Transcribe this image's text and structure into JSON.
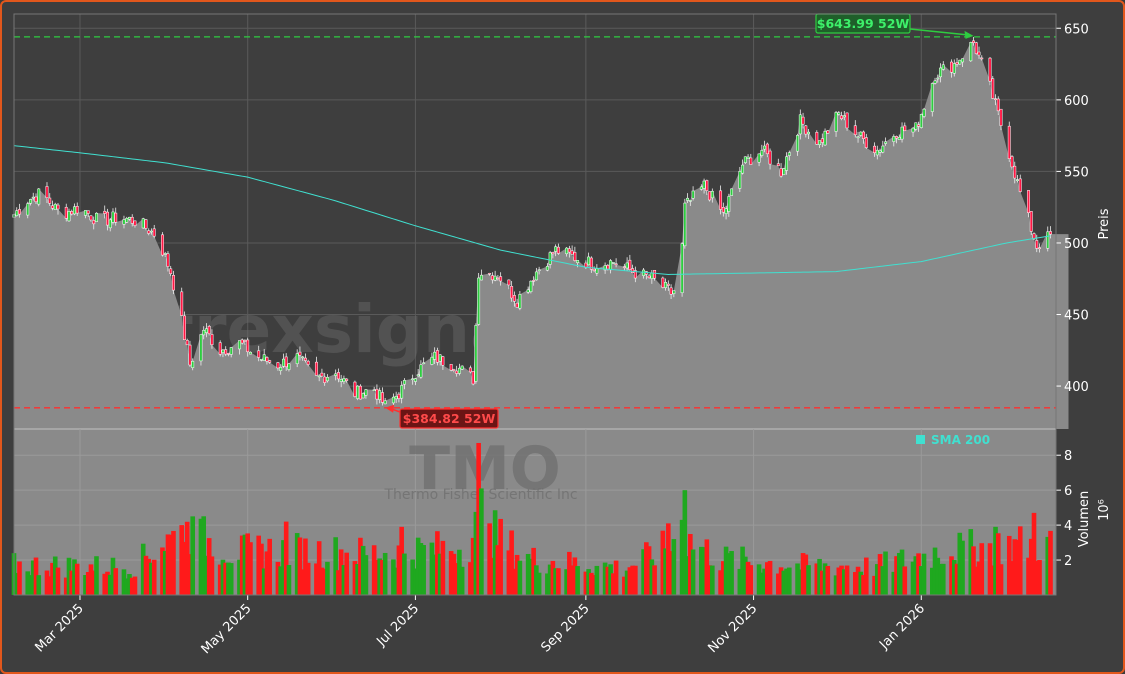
{
  "chart_data": [
    {
      "type": "candlestick",
      "title": "",
      "watermark": "trexsignale.trade",
      "ylabel": "Preis",
      "ylim": [
        370,
        660
      ],
      "yticks": [
        400,
        450,
        500,
        550,
        600,
        650
      ],
      "xlim": [
        "2025-02-05",
        "2026-02-19"
      ],
      "xticks": [
        {
          "date": "2025-03-01",
          "label": "Mar 2025"
        },
        {
          "date": "2025-05-01",
          "label": "May 2025"
        },
        {
          "date": "2025-07-01",
          "label": "Jul 2025"
        },
        {
          "date": "2025-09-01",
          "label": "Sep 2025"
        },
        {
          "date": "2025-11-01",
          "label": "Nov 2025"
        },
        {
          "date": "2026-01-01",
          "label": "Jan 2026"
        }
      ],
      "grid": true,
      "legend": {
        "placement": "bottom-right",
        "entries": [
          "SMA 200"
        ]
      },
      "colors": {
        "up": "#2ecc40",
        "down": "#ff1744",
        "sma": "#40e0d0",
        "high_line": "#2ecc40",
        "low_line": "#ff3030",
        "area": "#8a8a8a"
      },
      "annotations": [
        {
          "label": "$643.99 52W",
          "date": "2026-01-20",
          "value": 643.99,
          "kind": "52w-high"
        },
        {
          "label": "$384.82 52W",
          "date": "2025-06-20",
          "value": 384.82,
          "kind": "52w-low"
        }
      ],
      "close_path": [
        [
          "2025-02-05",
          520
        ],
        [
          "2025-02-10",
          530
        ],
        [
          "2025-02-15",
          535
        ],
        [
          "2025-02-22",
          520
        ],
        [
          "2025-03-01",
          525
        ],
        [
          "2025-03-08",
          515
        ],
        [
          "2025-03-15",
          518
        ],
        [
          "2025-03-22",
          515
        ],
        [
          "2025-03-29",
          505
        ],
        [
          "2025-04-03",
          480
        ],
        [
          "2025-04-07",
          445
        ],
        [
          "2025-04-10",
          415
        ],
        [
          "2025-04-15",
          440
        ],
        [
          "2025-04-21",
          425
        ],
        [
          "2025-04-28",
          430
        ],
        [
          "2025-05-05",
          420
        ],
        [
          "2025-05-12",
          415
        ],
        [
          "2025-05-19",
          420
        ],
        [
          "2025-05-26",
          405
        ],
        [
          "2025-06-02",
          410
        ],
        [
          "2025-06-09",
          395
        ],
        [
          "2025-06-16",
          398
        ],
        [
          "2025-06-20",
          386
        ],
        [
          "2025-06-25",
          395
        ],
        [
          "2025-07-01",
          410
        ],
        [
          "2025-07-08",
          420
        ],
        [
          "2025-07-15",
          415
        ],
        [
          "2025-07-22",
          405
        ],
        [
          "2025-07-24",
          480
        ],
        [
          "2025-07-31",
          478
        ],
        [
          "2025-08-07",
          460
        ],
        [
          "2025-08-14",
          480
        ],
        [
          "2025-08-21",
          495
        ],
        [
          "2025-08-28",
          490
        ],
        [
          "2025-09-04",
          485
        ],
        [
          "2025-09-11",
          487
        ],
        [
          "2025-09-18",
          480
        ],
        [
          "2025-09-25",
          475
        ],
        [
          "2025-10-02",
          465
        ],
        [
          "2025-10-05",
          470
        ],
        [
          "2025-10-07",
          525
        ],
        [
          "2025-10-14",
          540
        ],
        [
          "2025-10-21",
          520
        ],
        [
          "2025-10-28",
          555
        ],
        [
          "2025-11-04",
          565
        ],
        [
          "2025-11-11",
          550
        ],
        [
          "2025-11-18",
          585
        ],
        [
          "2025-11-25",
          570
        ],
        [
          "2025-12-02",
          590
        ],
        [
          "2025-12-09",
          575
        ],
        [
          "2025-12-16",
          565
        ],
        [
          "2025-12-23",
          578
        ],
        [
          "2025-12-30",
          580
        ],
        [
          "2026-01-06",
          618
        ],
        [
          "2026-01-13",
          625
        ],
        [
          "2026-01-20",
          640
        ],
        [
          "2026-01-25",
          615
        ],
        [
          "2026-02-01",
          570
        ],
        [
          "2026-02-06",
          535
        ],
        [
          "2026-02-12",
          498
        ],
        [
          "2026-02-17",
          505
        ]
      ],
      "series": [
        {
          "name": "SMA 200",
          "points": [
            [
              "2025-02-05",
              568
            ],
            [
              "2025-03-01",
              563
            ],
            [
              "2025-04-01",
              556
            ],
            [
              "2025-05-01",
              546
            ],
            [
              "2025-06-01",
              530
            ],
            [
              "2025-07-01",
              512
            ],
            [
              "2025-08-01",
              495
            ],
            [
              "2025-09-01",
              483
            ],
            [
              "2025-10-01",
              478
            ],
            [
              "2025-11-01",
              479
            ],
            [
              "2025-12-01",
              480
            ],
            [
              "2026-01-01",
              487
            ],
            [
              "2026-02-01",
              500
            ],
            [
              "2026-02-17",
              505
            ]
          ]
        }
      ]
    },
    {
      "type": "bar",
      "title": "",
      "watermark": "TMO",
      "watermark_sub": "Thermo Fisher Scientific Inc",
      "ylabel": "Volumen",
      "ylabel_scale": "10⁶",
      "ylim": [
        0,
        9.5
      ],
      "yticks": [
        2,
        4,
        6,
        8
      ],
      "volume_profile": [
        [
          "2025-02-05",
          1.8
        ],
        [
          "2025-03-20",
          1.7
        ],
        [
          "2025-04-01",
          3.2
        ],
        [
          "2025-04-10",
          3.8
        ],
        [
          "2025-04-25",
          2.6
        ],
        [
          "2025-05-15",
          2.7
        ],
        [
          "2025-06-15",
          2.5
        ],
        [
          "2025-07-20",
          2.9
        ],
        [
          "2025-07-24",
          4.4
        ],
        [
          "2025-08-10",
          2.2
        ],
        [
          "2025-09-15",
          1.6
        ],
        [
          "2025-10-07",
          3.4
        ],
        [
          "2025-10-20",
          2.2
        ],
        [
          "2025-11-15",
          1.8
        ],
        [
          "2025-12-15",
          1.7
        ],
        [
          "2026-01-10",
          2.7
        ],
        [
          "2026-02-10",
          3.1
        ],
        [
          "2026-02-17",
          3.0
        ]
      ],
      "spikes": [
        {
          "date": "2025-07-24",
          "value": 8.7,
          "dir": "down"
        },
        {
          "date": "2025-07-25",
          "value": 6.1,
          "dir": "up"
        },
        {
          "date": "2025-07-28",
          "value": 4.1,
          "dir": "down"
        },
        {
          "date": "2025-10-06",
          "value": 4.3,
          "dir": "up"
        },
        {
          "date": "2025-10-07",
          "value": 6.0,
          "dir": "up"
        },
        {
          "date": "2025-10-01",
          "value": 4.1,
          "dir": "down"
        },
        {
          "date": "2025-04-07",
          "value": 4.0,
          "dir": "down"
        },
        {
          "date": "2025-04-11",
          "value": 4.5,
          "dir": "up"
        },
        {
          "date": "2025-05-15",
          "value": 4.2,
          "dir": "down"
        },
        {
          "date": "2025-06-26",
          "value": 3.9,
          "dir": "down"
        },
        {
          "date": "2026-02-11",
          "value": 4.7,
          "dir": "down"
        },
        {
          "date": "2026-01-28",
          "value": 3.9,
          "dir": "up"
        }
      ]
    }
  ]
}
